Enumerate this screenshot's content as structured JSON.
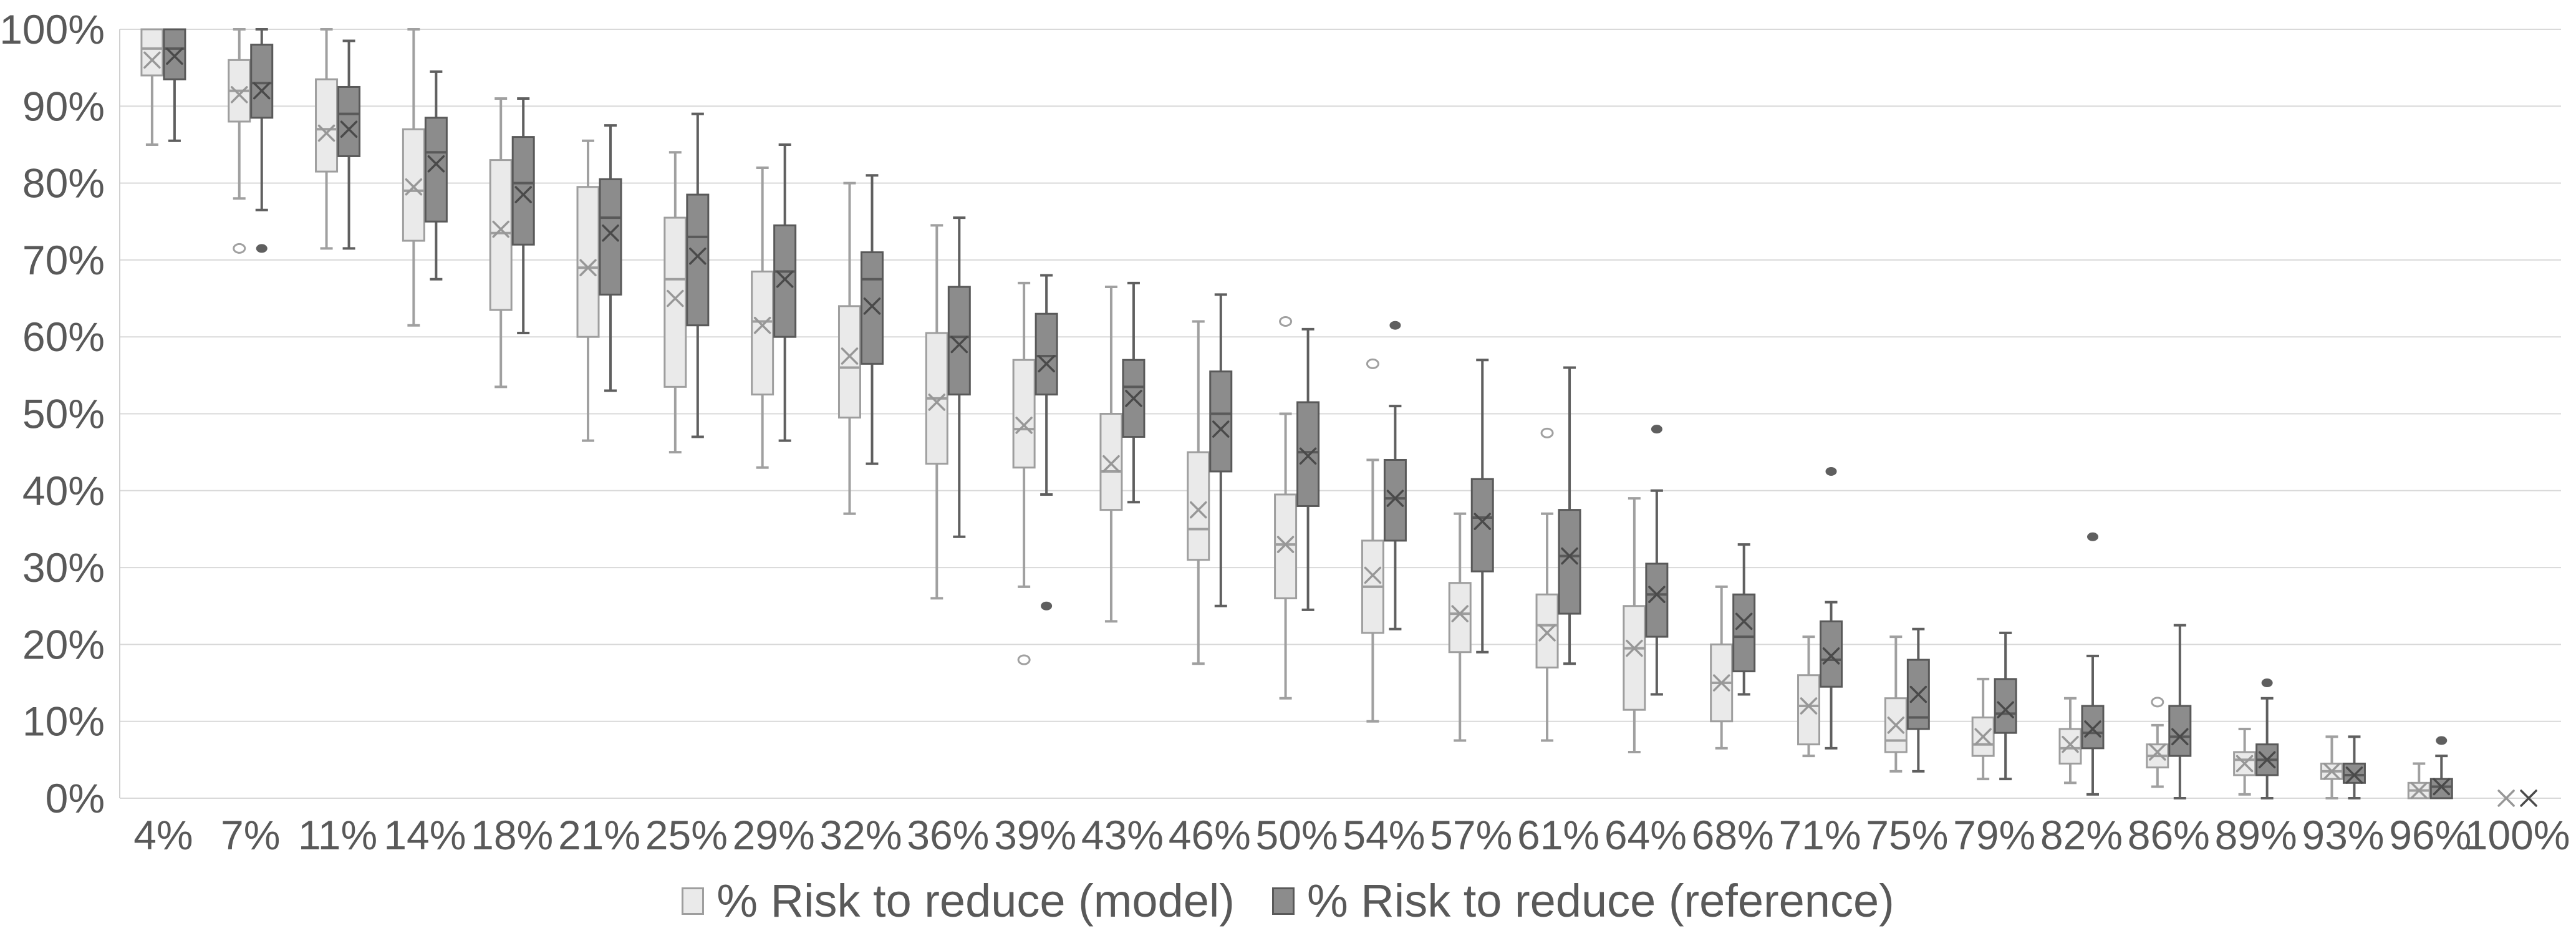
{
  "page": {
    "background": "#ffffff"
  },
  "colors": {
    "text": "#595959",
    "gridline": "#d9d9d9",
    "axis_border": "#d0d0d0",
    "model_fill": "#eaeaea",
    "model_stroke": "#9e9e9e",
    "model_whisker": "#a0a0a0",
    "model_mean": "#979797",
    "ref_fill": "#8c8c8c",
    "ref_stroke": "#595959",
    "ref_whisker": "#5f5f5f",
    "ref_mean": "#4a4a4a"
  },
  "y_axis": {
    "tick_labels": [
      "100%",
      "90%",
      "80%",
      "70%",
      "60%",
      "50%",
      "40%",
      "30%",
      "20%",
      "10%",
      "0%"
    ]
  },
  "legend": {
    "items": [
      {
        "id": "model",
        "label": "% Risk to reduce (model)",
        "swatch_fill": "#eaeaea",
        "swatch_border": "#9e9e9e"
      },
      {
        "id": "reference",
        "label": "% Risk to reduce (reference)",
        "swatch_fill": "#8c8c8c",
        "swatch_border": "#595959"
      }
    ]
  },
  "chart_data": {
    "type": "boxplot",
    "title": "",
    "xlabel": "",
    "ylabel": "",
    "grid": true,
    "legend_position": "bottom",
    "ylim": [
      0,
      100
    ],
    "ytick_step": 10,
    "y_tick_format": "percent",
    "categories": [
      "4%",
      "7%",
      "11%",
      "14%",
      "18%",
      "21%",
      "25%",
      "29%",
      "32%",
      "36%",
      "39%",
      "43%",
      "46%",
      "50%",
      "54%",
      "57%",
      "61%",
      "64%",
      "68%",
      "71%",
      "75%",
      "79%",
      "82%",
      "86%",
      "89%",
      "93%",
      "96%",
      "100%"
    ],
    "box_value_order": [
      "low_whisker",
      "q1",
      "median",
      "q3",
      "high_whisker",
      "mean",
      "outliers"
    ],
    "series": [
      {
        "name": "% Risk to reduce (model)",
        "marker": "open-circle",
        "boxes": [
          [
            85,
            94,
            97.5,
            100,
            100,
            96,
            []
          ],
          [
            78,
            88,
            92,
            96,
            100,
            91.5,
            [
              71.5
            ]
          ],
          [
            71.5,
            81.5,
            87,
            93.5,
            100,
            86.5,
            []
          ],
          [
            61.5,
            72.5,
            79,
            87,
            100,
            79.5,
            []
          ],
          [
            53.5,
            63.5,
            73.5,
            83,
            91,
            74,
            []
          ],
          [
            46.5,
            60,
            69,
            79.5,
            85.5,
            69,
            []
          ],
          [
            45,
            53.5,
            67.5,
            75.5,
            84,
            65,
            []
          ],
          [
            43,
            52.5,
            62,
            68.5,
            82,
            61.5,
            []
          ],
          [
            37,
            49.5,
            56,
            64,
            80,
            57.5,
            []
          ],
          [
            26,
            43.5,
            52,
            60.5,
            74.5,
            51.5,
            []
          ],
          [
            27.5,
            43,
            48,
            57,
            67,
            48.5,
            [
              18
            ]
          ],
          [
            23,
            37.5,
            42.5,
            50,
            66.5,
            43.5,
            []
          ],
          [
            17.5,
            31,
            35,
            45,
            62,
            37.5,
            []
          ],
          [
            13,
            26,
            33,
            39.5,
            50,
            33,
            [
              62
            ]
          ],
          [
            10,
            21.5,
            27.5,
            33.5,
            44,
            29,
            [
              56.5
            ]
          ],
          [
            7.5,
            19,
            24,
            28,
            37,
            24,
            []
          ],
          [
            7.5,
            17,
            22.5,
            26.5,
            37,
            21.5,
            [
              47.5
            ]
          ],
          [
            6,
            11.5,
            19.5,
            25,
            39,
            19.5,
            []
          ],
          [
            6.5,
            10,
            15,
            20,
            27.5,
            15,
            []
          ],
          [
            5.5,
            7,
            12,
            16,
            21,
            12,
            []
          ],
          [
            3.5,
            6,
            7.5,
            13,
            21,
            9.5,
            []
          ],
          [
            2.5,
            5.5,
            7,
            10.5,
            15.5,
            8,
            []
          ],
          [
            2,
            4.5,
            6.5,
            9,
            13,
            7,
            []
          ],
          [
            1.5,
            4,
            5.5,
            7,
            9.5,
            6,
            [
              12.5
            ]
          ],
          [
            0.5,
            3,
            5,
            6,
            9,
            4.5,
            []
          ],
          [
            0,
            2.5,
            3.5,
            4.5,
            8,
            3.5,
            []
          ],
          [
            0,
            0,
            1,
            2,
            4.5,
            1,
            []
          ],
          [
            0,
            0,
            0,
            0,
            0,
            0,
            []
          ]
        ]
      },
      {
        "name": "% Risk to reduce (reference)",
        "marker": "filled-circle",
        "boxes": [
          [
            85.5,
            93.5,
            97.5,
            100,
            100,
            96.5,
            []
          ],
          [
            76.5,
            88.5,
            93,
            98,
            100,
            92,
            [
              71.5
            ]
          ],
          [
            71.5,
            83.5,
            89,
            92.5,
            98.5,
            87,
            []
          ],
          [
            67.5,
            75,
            84,
            88.5,
            94.5,
            82.5,
            []
          ],
          [
            60.5,
            72,
            80,
            86,
            91,
            78.5,
            []
          ],
          [
            53,
            65.5,
            75.5,
            80.5,
            87.5,
            73.5,
            []
          ],
          [
            47,
            61.5,
            73,
            78.5,
            89,
            70.5,
            []
          ],
          [
            46.5,
            60,
            68.5,
            74.5,
            85,
            67.5,
            []
          ],
          [
            43.5,
            56.5,
            67.5,
            71,
            81,
            64,
            []
          ],
          [
            34,
            52.5,
            60,
            66.5,
            75.5,
            59,
            []
          ],
          [
            39.5,
            52.5,
            57.5,
            63,
            68,
            56.5,
            [
              25
            ]
          ],
          [
            38.5,
            47,
            53.5,
            57,
            67,
            52,
            []
          ],
          [
            25,
            42.5,
            50,
            55.5,
            65.5,
            48,
            []
          ],
          [
            24.5,
            38,
            45,
            51.5,
            61,
            44.5,
            []
          ],
          [
            22,
            33.5,
            39,
            44,
            51,
            39,
            [
              61.5
            ]
          ],
          [
            19,
            29.5,
            36.5,
            41.5,
            57,
            36,
            []
          ],
          [
            17.5,
            24,
            31.5,
            37.5,
            56,
            31.5,
            []
          ],
          [
            13.5,
            21,
            26.5,
            30.5,
            40,
            26.5,
            [
              48
            ]
          ],
          [
            13.5,
            16.5,
            21,
            26.5,
            33,
            23,
            []
          ],
          [
            6.5,
            14.5,
            18,
            23,
            25.5,
            18.5,
            [
              42.5
            ]
          ],
          [
            3.5,
            9,
            10.5,
            18,
            22,
            13.5,
            []
          ],
          [
            2.5,
            8.5,
            11,
            15.5,
            21.5,
            11.5,
            []
          ],
          [
            0.5,
            6.5,
            8.5,
            12,
            18.5,
            9,
            [
              34
            ]
          ],
          [
            0,
            5.5,
            8,
            12,
            22.5,
            8,
            []
          ],
          [
            0,
            3,
            5,
            7,
            13,
            5,
            [
              15
            ]
          ],
          [
            0,
            2,
            3,
            4.5,
            8,
            3,
            []
          ],
          [
            0,
            0,
            1.5,
            2.5,
            5.5,
            1.5,
            [
              7.5
            ]
          ],
          [
            0,
            0,
            0,
            0,
            0,
            0,
            []
          ]
        ]
      }
    ]
  }
}
